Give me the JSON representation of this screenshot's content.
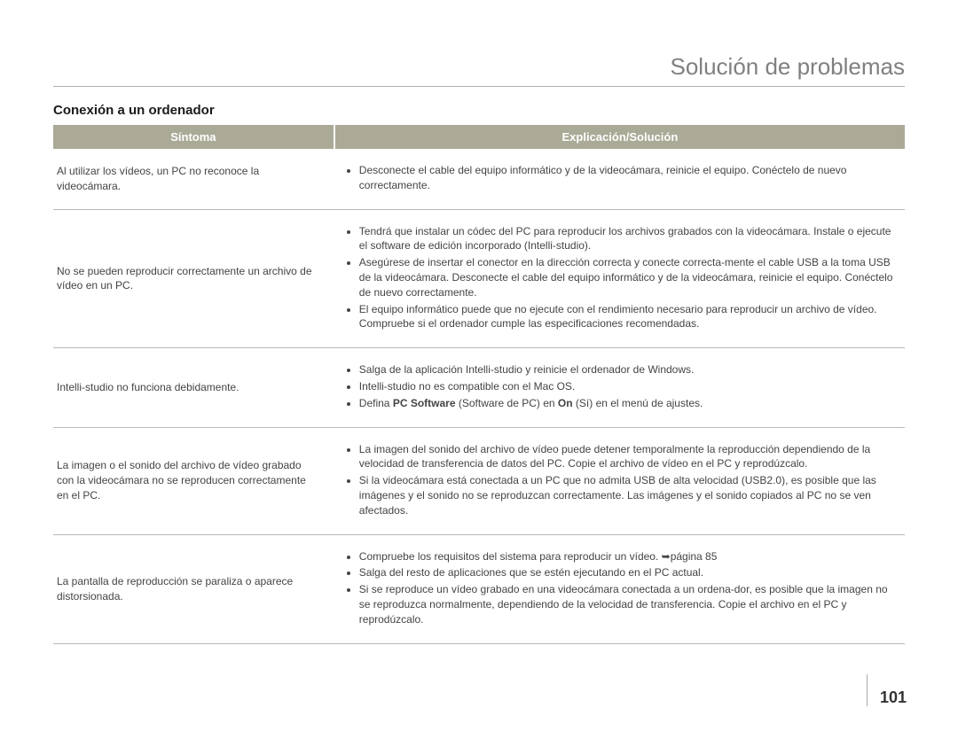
{
  "page_title": "Solución de problemas",
  "section_title": "Conexión a un ordenador",
  "page_number": "101",
  "table": {
    "header_col1": "Síntoma",
    "header_col2": "Explicación/Solución",
    "rows": [
      {
        "symptom": "Al utilizar los vídeos, un PC no reconoce la videocámara.",
        "solutions": [
          "Desconecte el cable del equipo informático y de la videocámara, reinicie el equipo. Conéctelo de nuevo correctamente."
        ]
      },
      {
        "symptom": "No se pueden reproducir correctamente un archivo de vídeo en un PC.",
        "solutions": [
          "Tendrá que instalar un códec del PC para reproducir los archivos grabados con la videocámara. Instale o ejecute el software de edición incorporado (Intelli-studio).",
          "Asegúrese de insertar el conector en la dirección correcta y conecte correcta-mente el cable USB a la toma USB de la videocámara. Desconecte el cable del equipo informático y de la videocámara, reinicie el equipo. Conéctelo de nuevo correctamente.",
          "El equipo informático puede que no ejecute con el rendimiento necesario para reproducir un archivo de vídeo. Compruebe si el ordenador cumple las especificaciones recomendadas."
        ]
      },
      {
        "symptom": "Intelli-studio no funciona debidamente.",
        "solutions": [
          "Salga de la aplicación Intelli-studio y reinicie el ordenador de Windows.",
          "Intelli-studio no es compatible con el Mac OS.",
          "Defina <b>PC Software</b> (Software de PC) en <b>On</b> (Sí) en el menú de ajustes."
        ]
      },
      {
        "symptom": "La imagen o el sonido del archivo de vídeo grabado con la videocámara no se reproducen correctamente en el PC.",
        "solutions": [
          "La imagen del sonido del archivo de vídeo puede detener temporalmente la reproducción dependiendo de la velocidad de transferencia de datos del PC. Copie el archivo de vídeo en el PC y reprodúzcalo.",
          "Si la videocámara está conectada a un PC que no admita USB de alta velocidad (USB2.0), es posible que las imágenes y el sonido no se reproduzcan correctamente. Las imágenes y el sonido copiados al PC no se ven afectados."
        ]
      },
      {
        "symptom": "La pantalla de reproducción se paraliza o aparece distorsionada.",
        "solutions": [
          "Compruebe los requisitos del sistema para reproducir un vídeo. ➥página 85",
          "Salga del resto de aplicaciones que se estén ejecutando en el PC actual.",
          "Si se reproduce un vídeo grabado en una videocámara conectada a un ordena-dor, es posible que la imagen no se reproduzca normalmente, dependiendo de la velocidad de transferencia. Copie el archivo en el PC y reprodúzcalo."
        ]
      }
    ]
  }
}
